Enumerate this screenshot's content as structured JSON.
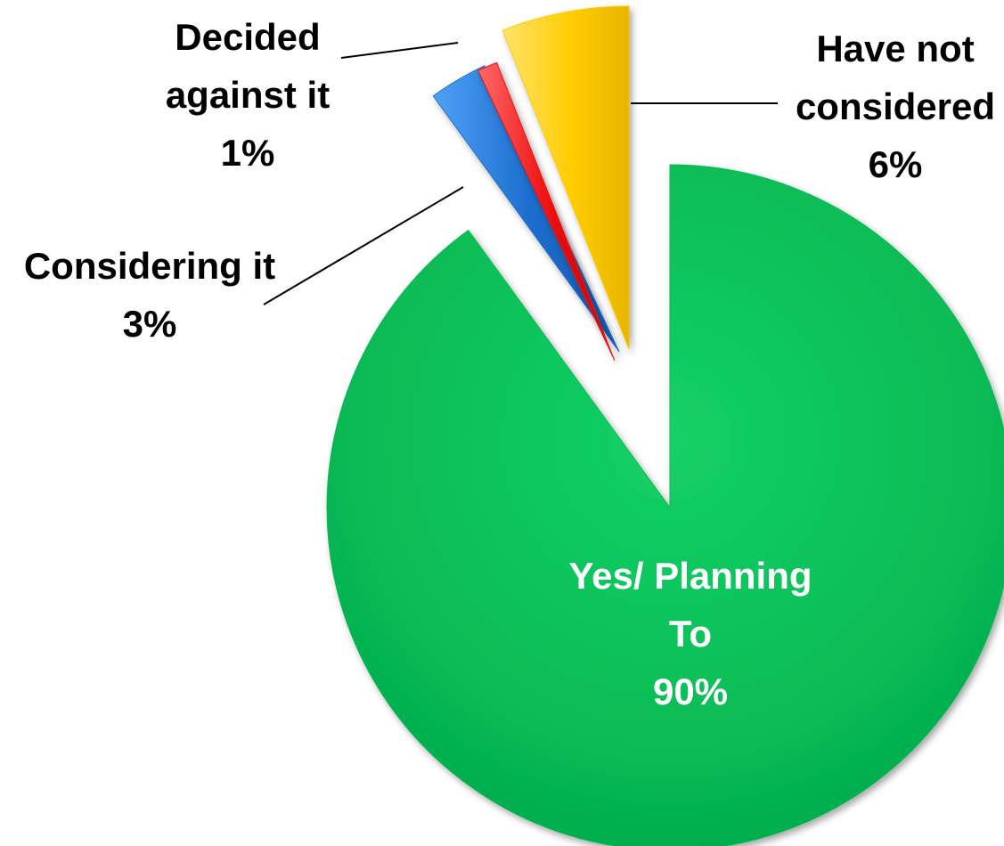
{
  "chart_data": {
    "type": "pie",
    "title": "",
    "legend": "none",
    "start": "twelve-o-clock",
    "direction": "clockwise",
    "exploded": true,
    "slices": [
      {
        "key": "yes",
        "label_lines": [
          "Yes/ Planning",
          "To"
        ],
        "value": 90,
        "value_label": "90%",
        "color": "#07BB55",
        "label_color": "#FFFFFF",
        "label_placement": "inside"
      },
      {
        "key": "considering",
        "label_lines": [
          "Considering it"
        ],
        "value": 3,
        "value_label": "3%",
        "color": "#1E6FD0",
        "label_color": "#000000",
        "label_placement": "outside"
      },
      {
        "key": "decided",
        "label_lines": [
          "Decided",
          "against it"
        ],
        "value": 1,
        "value_label": "1%",
        "color": "#F01212",
        "label_color": "#000000",
        "label_placement": "outside"
      },
      {
        "key": "havenot",
        "label_lines": [
          "Have not",
          "considered"
        ],
        "value": 6,
        "value_label": "6%",
        "color": "#FFCC00",
        "label_color": "#000000",
        "label_placement": "outside"
      }
    ]
  }
}
